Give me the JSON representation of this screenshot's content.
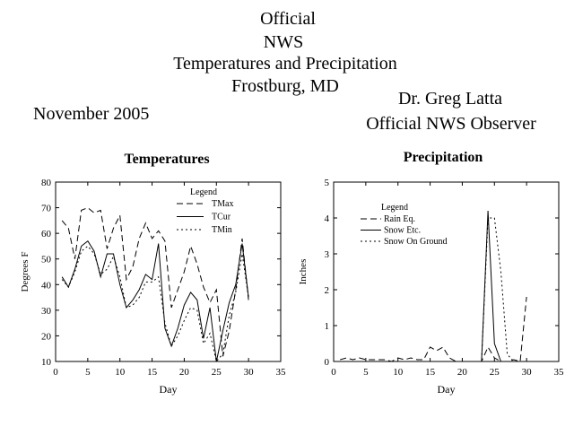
{
  "header": {
    "title_lines": [
      "Official",
      "NWS",
      "Temperatures and Precipitation",
      "Frostburg, MD"
    ],
    "period": "November 2005",
    "observer_name": "Dr. Greg Latta",
    "observer_role": "Official NWS Observer"
  },
  "chart_data": [
    {
      "type": "line",
      "title": "Temperatures",
      "xlabel": "Day",
      "ylabel": "Degrees F",
      "xlim": [
        0,
        35
      ],
      "ylim": [
        10,
        80
      ],
      "xticks": [
        0,
        5,
        10,
        15,
        20,
        25,
        30,
        35
      ],
      "yticks": [
        10,
        20,
        30,
        40,
        50,
        60,
        70,
        80
      ],
      "grid": false,
      "legend_title": "Legend",
      "legend_position": "top-right",
      "x": [
        1,
        2,
        3,
        4,
        5,
        6,
        7,
        8,
        9,
        10,
        11,
        12,
        13,
        14,
        15,
        16,
        17,
        18,
        19,
        20,
        21,
        22,
        23,
        24,
        25,
        26,
        27,
        28,
        29,
        30
      ],
      "series": [
        {
          "name": "TMax",
          "style": "dashed",
          "values": [
            65,
            62,
            50,
            69,
            70,
            68,
            69,
            54,
            62,
            67,
            42,
            47,
            58,
            64,
            58,
            61,
            57,
            31,
            38,
            45,
            55,
            48,
            39,
            33,
            38,
            12,
            22,
            38,
            58,
            34
          ]
        },
        {
          "name": "TCur",
          "style": "solid",
          "values": [
            43,
            39,
            46,
            55,
            57,
            53,
            43,
            52,
            52,
            40,
            31,
            34,
            38,
            44,
            42,
            56,
            23,
            16,
            23,
            32,
            37,
            34,
            19,
            31,
            10,
            22,
            33,
            40,
            56,
            35
          ]
        },
        {
          "name": "TMin",
          "style": "dotted",
          "values": [
            42,
            39,
            45,
            53,
            55,
            52,
            44,
            46,
            51,
            43,
            31,
            32,
            35,
            41,
            41,
            43,
            25,
            16,
            20,
            26,
            31,
            30,
            17,
            21,
            10,
            13,
            28,
            37,
            52,
            35
          ]
        }
      ]
    },
    {
      "type": "line",
      "title": "Precipitation",
      "xlabel": "Day",
      "ylabel": "Inches",
      "xlim": [
        0,
        35
      ],
      "ylim": [
        0,
        5
      ],
      "xticks": [
        0,
        5,
        10,
        15,
        20,
        25,
        30,
        35
      ],
      "yticks": [
        0,
        1,
        2,
        3,
        4,
        5
      ],
      "grid": false,
      "legend_title": "Legend",
      "legend_position": "top-left",
      "x": [
        1,
        2,
        3,
        4,
        5,
        6,
        7,
        8,
        9,
        10,
        11,
        12,
        13,
        14,
        15,
        16,
        17,
        18,
        19,
        20,
        21,
        22,
        23,
        24,
        25,
        26,
        27,
        28,
        29,
        30
      ],
      "series": [
        {
          "name": "Rain Eq.",
          "style": "dashed",
          "values": [
            0.05,
            0.1,
            0.05,
            0.1,
            0.05,
            0.05,
            0.05,
            0.05,
            0,
            0.1,
            0.05,
            0.1,
            0.05,
            0.05,
            0.4,
            0.3,
            0.4,
            0.1,
            0,
            0,
            0,
            0,
            0,
            0.4,
            0.1,
            0,
            0,
            0.05,
            0,
            1.8
          ]
        },
        {
          "name": "Snow Etc.",
          "style": "solid",
          "values": [
            0,
            0,
            0,
            0,
            0,
            0,
            0,
            0,
            0,
            0,
            0,
            0,
            0,
            0,
            0,
            0,
            0,
            0,
            0,
            0,
            0,
            0,
            0,
            4.2,
            0.5,
            0,
            0,
            0,
            0,
            0
          ]
        },
        {
          "name": "Snow On Ground",
          "style": "dotted",
          "values": [
            0,
            0,
            0,
            0,
            0,
            0,
            0,
            0,
            0,
            0,
            0,
            0,
            0,
            0,
            0,
            0,
            0,
            0,
            0,
            0,
            0,
            0,
            0,
            4.0,
            4.0,
            2.5,
            0.2,
            0,
            0,
            0
          ]
        }
      ]
    }
  ]
}
